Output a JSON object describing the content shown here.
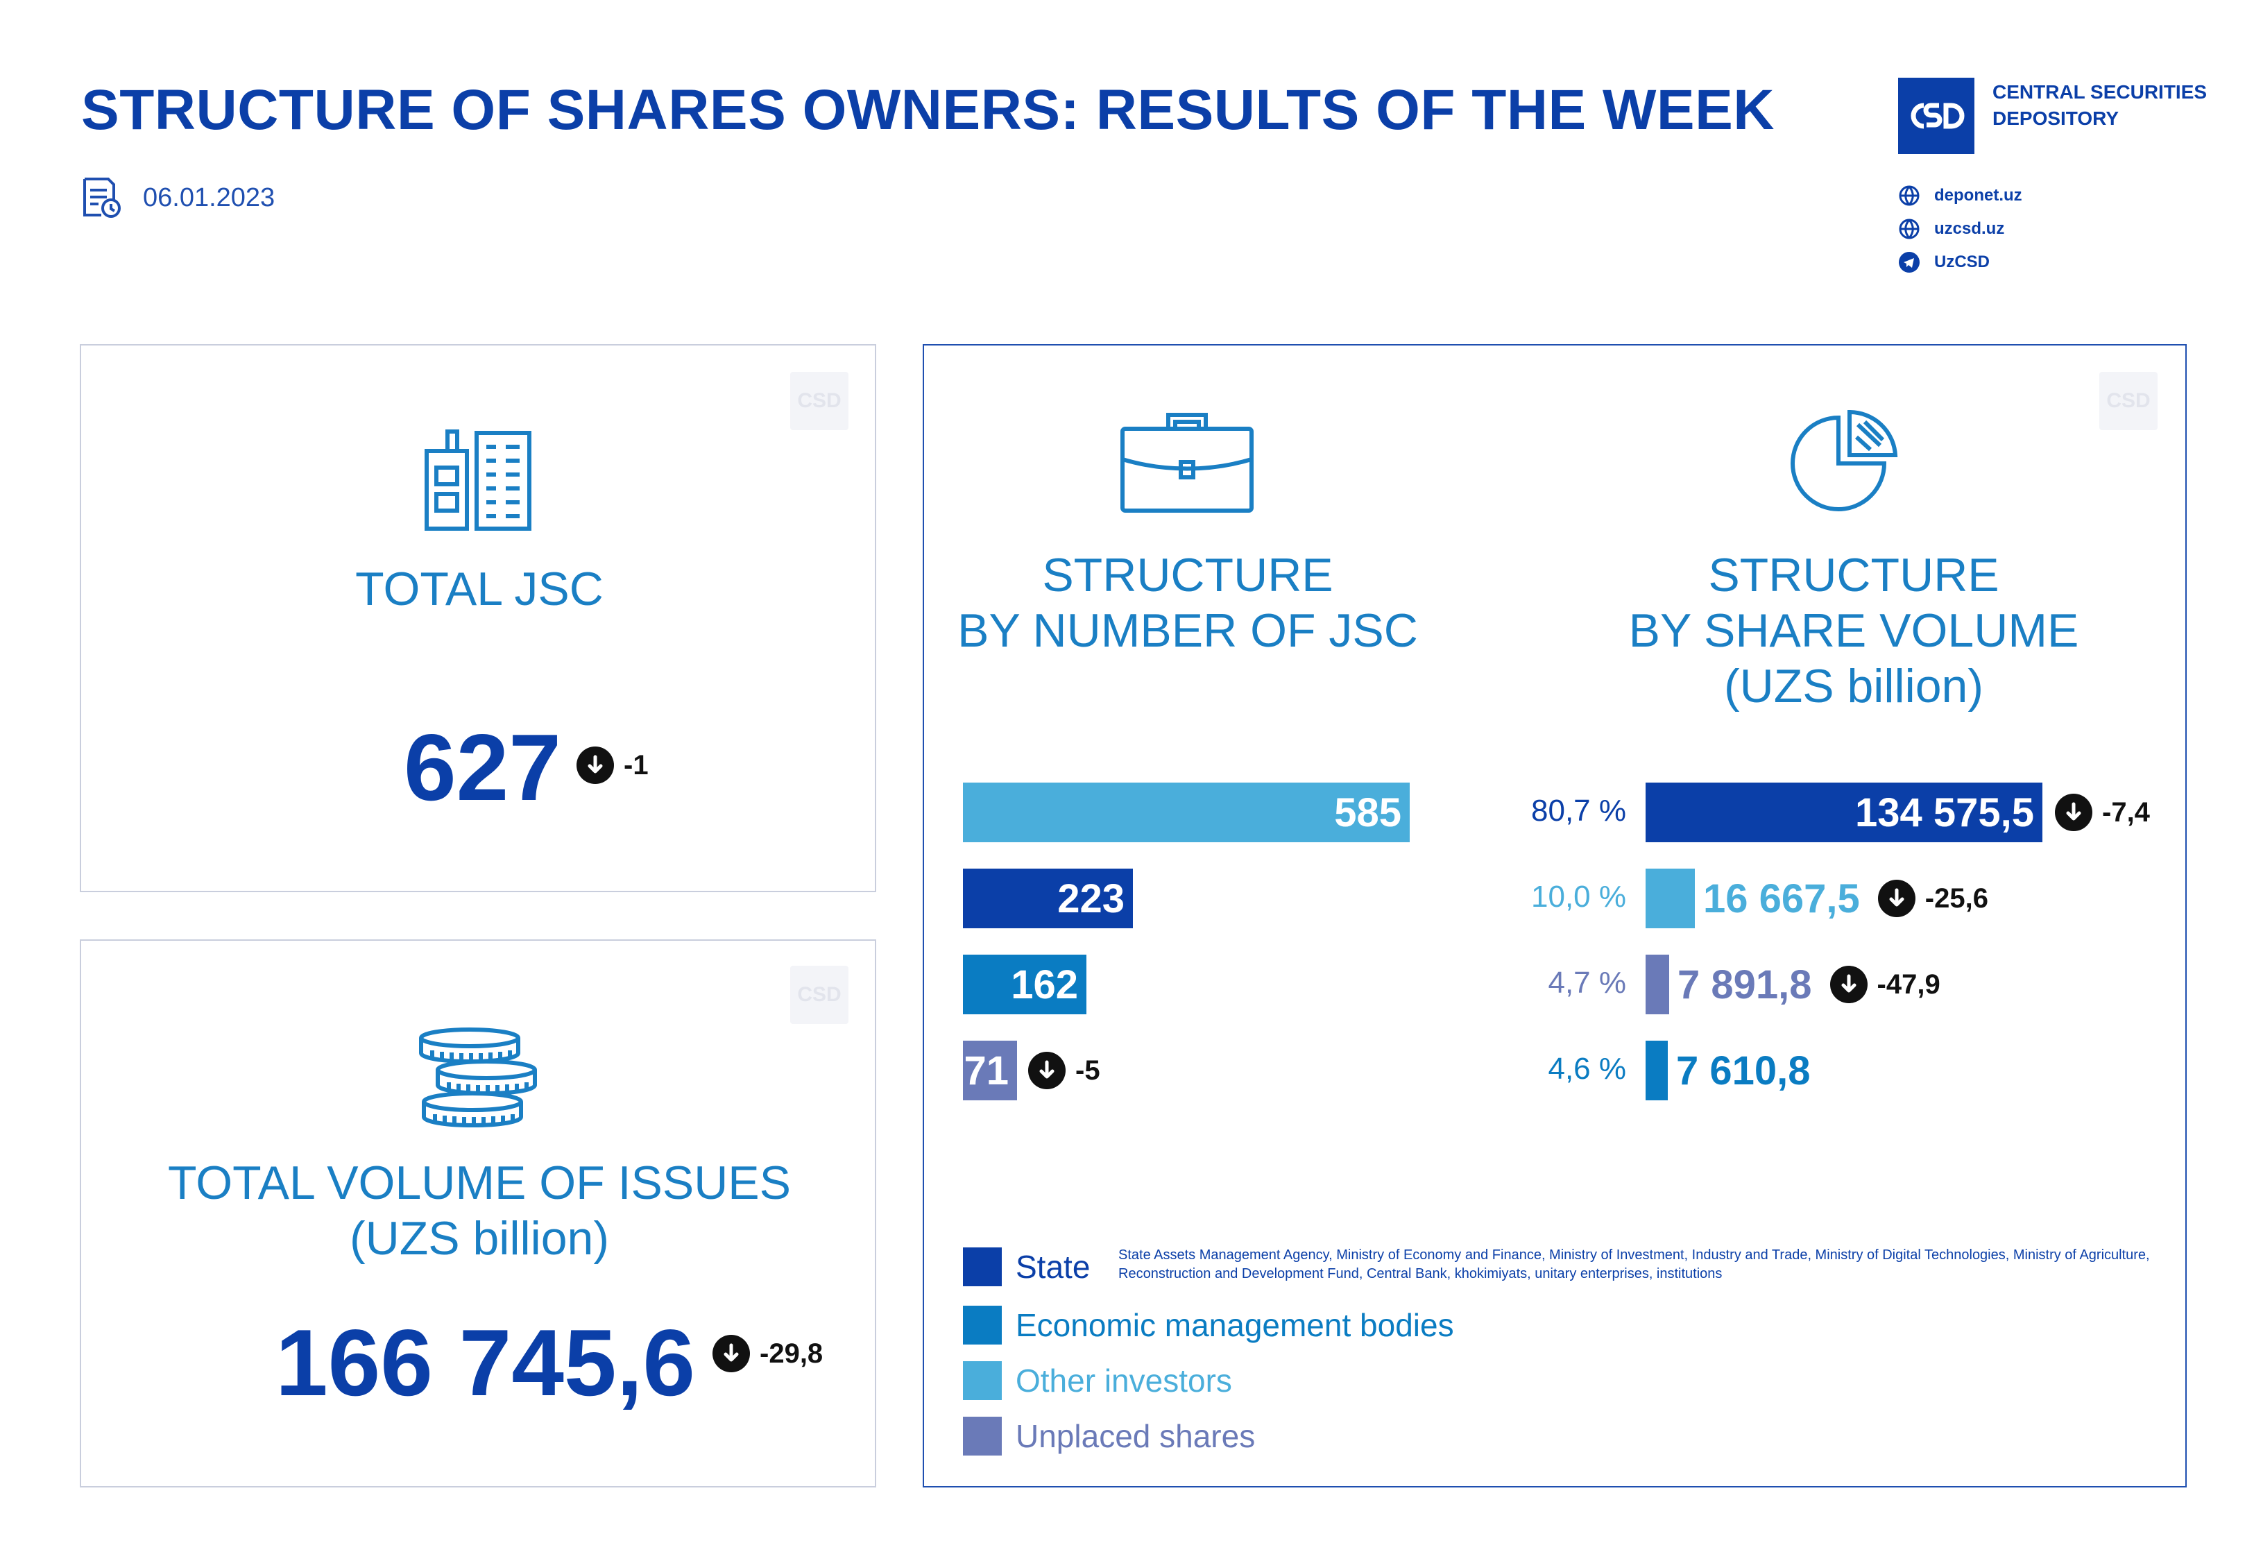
{
  "header": {
    "title": "STRUCTURE OF SHARES OWNERS: RESULTS OF THE WEEK",
    "date": "06.01.2023"
  },
  "brand": {
    "logo_text": "CSD",
    "name_line1": "CENTRAL SECURITIES",
    "name_line2": "DEPOSITORY",
    "links": [
      {
        "icon": "globe-icon",
        "label": "deponet.uz"
      },
      {
        "icon": "globe-icon",
        "label": "uzcsd.uz"
      },
      {
        "icon": "telegram-icon",
        "label": "UzCSD"
      }
    ]
  },
  "total_jsc": {
    "label": "TOTAL JSC",
    "value": "627",
    "delta": "-1",
    "icon": "buildings-icon"
  },
  "total_volume": {
    "label_line1": "TOTAL VOLUME OF ISSUES",
    "label_line2": "(UZS billion)",
    "value": "166 745,6",
    "delta": "-29,8",
    "icon": "coins-icon"
  },
  "structure_number": {
    "heading_line1": "STRUCTURE",
    "heading_line2": "BY NUMBER OF JSC",
    "icon": "briefcase-icon"
  },
  "structure_volume": {
    "heading_line1": "STRUCTURE",
    "heading_line2": "BY SHARE VOLUME",
    "heading_line3": "(UZS billion)",
    "icon": "pie-chart-icon"
  },
  "colors": {
    "state": "#0b3fa8",
    "economic": "#0a7cc2",
    "other": "#4aaedb",
    "unplaced": "#6a7ab8"
  },
  "chart_data": [
    {
      "type": "bar",
      "orientation": "horizontal",
      "categories": [
        "Other investors",
        "State",
        "Economic management bodies",
        "Unplaced shares"
      ],
      "values": [
        585,
        223,
        162,
        71
      ],
      "labels": [
        "585",
        "223",
        "162",
        "71"
      ],
      "deltas": [
        "",
        "",
        "",
        "-5"
      ],
      "colors": [
        "#4aaedb",
        "#0b3fa8",
        "#0a7cc2",
        "#6a7ab8"
      ]
    },
    {
      "type": "bar",
      "orientation": "horizontal",
      "categories": [
        "State",
        "Other investors",
        "Unplaced shares",
        "Economic management bodies"
      ],
      "values": [
        134575.5,
        16667.5,
        7891.8,
        7610.8
      ],
      "labels": [
        "134 575,5",
        "16 667,5",
        "7 891,8",
        "7 610,8"
      ],
      "percents": [
        "80,7 %",
        "10,0 %",
        "4,7 %",
        "4,6 %"
      ],
      "deltas": [
        "-7,4",
        "-25,6",
        "-47,9",
        ""
      ],
      "colors": [
        "#0b3fa8",
        "#4aaedb",
        "#6a7ab8",
        "#0a7cc2"
      ]
    }
  ],
  "legend": {
    "items": [
      {
        "label": "State",
        "color": "#0b3fa8"
      },
      {
        "label": "Economic management bodies",
        "color": "#0a7cc2"
      },
      {
        "label": "Other investors",
        "color": "#4aaedb"
      },
      {
        "label": "Unplaced shares",
        "color": "#6a7ab8"
      }
    ],
    "state_note": "State Assets Management Agency, Ministry of Economy and Finance, Ministry of Investment, Industry and Trade, Ministry of Digital Technologies, Ministry of Agriculture, Reconstruction and Development Fund, Central Bank, khokimiyats, unitary enterprises, institutions"
  }
}
